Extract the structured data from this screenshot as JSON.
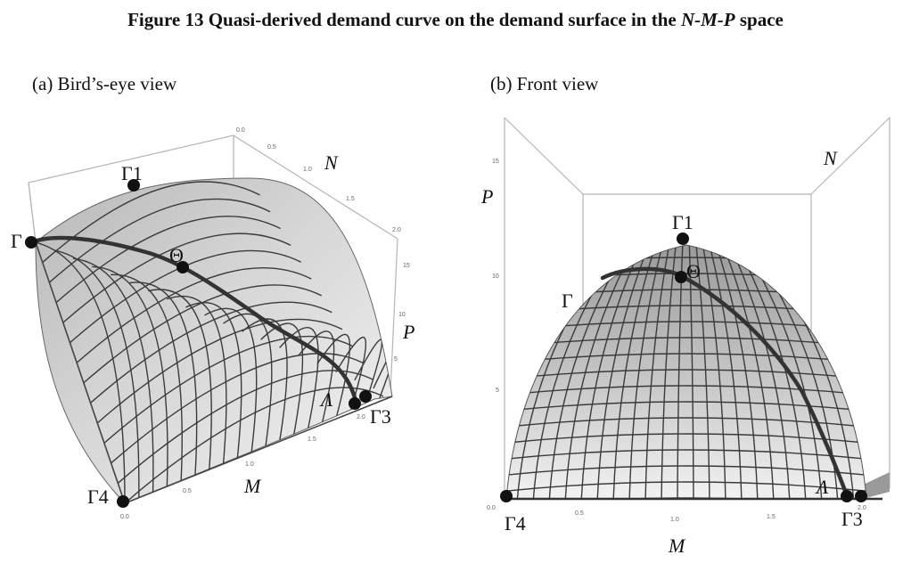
{
  "title": {
    "prefix": "Figure 13  Quasi-derived demand curve on the demand surface in the ",
    "space": "N-M-P",
    "suffix": " space"
  },
  "panels": [
    {
      "caption": "(a)  Bird’s-eye view",
      "axis_labels": {
        "n": "N",
        "p": "P",
        "m": "M"
      },
      "points": {
        "gamma": "Γ",
        "gamma1": "Γ1",
        "theta": "Θ",
        "lambda": "Λ",
        "gamma3": "Γ3",
        "gamma4": "Γ4"
      },
      "n_ticks": [
        "0.0",
        "0.5",
        "1.0",
        "1.5",
        "2.0"
      ],
      "p_ticks": [
        "15",
        "10",
        "5"
      ],
      "m_ticks": [
        "0.0",
        "0.5",
        "1.0",
        "1.5",
        "2.0"
      ]
    },
    {
      "caption": "(b) Front view",
      "axis_labels": {
        "n": "N",
        "p": "P",
        "m": "M"
      },
      "points": {
        "gamma": "Γ",
        "gamma1": "Γ1",
        "theta": "Θ",
        "lambda": "Λ",
        "gamma3": "Γ3",
        "gamma4": "Γ4"
      },
      "p_ticks": [
        "15",
        "10",
        "5"
      ],
      "m_ticks": [
        "0.0",
        "0.5",
        "1.0",
        "1.5",
        "2.0"
      ]
    }
  ]
}
